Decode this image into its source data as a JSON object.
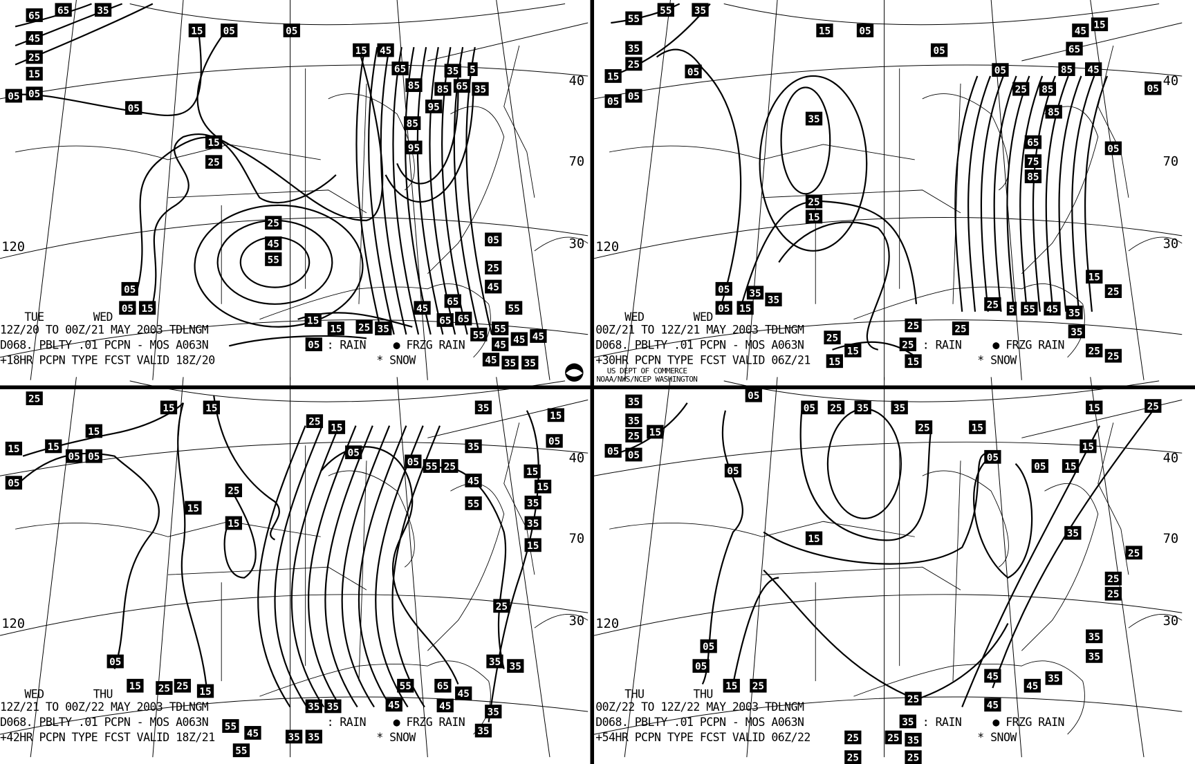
{
  "legend": {
    "frzg_rain": "● FRZG RAIN",
    "snow": "* SNOW",
    "rain_suffix": ": RAIN"
  },
  "graticule": {
    "lat40": "40",
    "lat30": "30",
    "lon70": "70",
    "lon120": "120"
  },
  "agency": {
    "line1": "US DEPT OF COMMERCE",
    "line2": "NOAA/NWS/NCEP WASHINGTON"
  },
  "panels": [
    {
      "day1": "TUE",
      "day2": "WED",
      "period": "12Z/20 TO 00Z/21 MAY 2003  TDLNGM",
      "product": "D068. PBLTY .01 PCPN - MOS A063N",
      "valid": "+18HR PCPN TYPE FCST VALID 18Z/20",
      "legend_rain_value": "05",
      "contour_labels": [
        "65",
        "65",
        "35",
        "45",
        "25",
        "15",
        "05",
        "05",
        "15",
        "05",
        "05",
        "05",
        "15",
        "25",
        "15",
        "45",
        "65",
        "85",
        "35",
        "5",
        "85",
        "65",
        "35",
        "95",
        "85",
        "95",
        "25",
        "45",
        "55",
        "05",
        "05",
        "15",
        "05",
        "25",
        "45",
        "55",
        "45",
        "65",
        "65",
        "65",
        "15",
        "15",
        "25",
        "35",
        "55",
        "55",
        "45",
        "45",
        "45",
        "45",
        "35",
        "35"
      ]
    },
    {
      "day1": "WED",
      "day2": "WED",
      "period": "00Z/21 TO 12Z/21 MAY 2003  TDLNGM",
      "product": "D068. PBLTY .01 PCPN - MOS A063N",
      "valid": "+30HR PCPN TYPE FCST VALID 06Z/21",
      "legend_rain_value": "25",
      "contour_labels": [
        "55",
        "55",
        "35",
        "35",
        "25",
        "15",
        "05",
        "05",
        "15",
        "05",
        "05",
        "05",
        "35",
        "25",
        "15",
        "05",
        "25",
        "85",
        "85",
        "65",
        "75",
        "85",
        "45",
        "15",
        "65",
        "85",
        "45",
        "05",
        "05",
        "05",
        "05",
        "15",
        "35",
        "35",
        "25",
        "5",
        "55",
        "45",
        "35",
        "35",
        "15",
        "25",
        "25",
        "25",
        "15",
        "15",
        "15",
        "25",
        "25",
        "25"
      ]
    },
    {
      "day1": "WED",
      "day2": "THU",
      "period": "12Z/21 TO 00Z/22 MAY 2003  TDLNGM",
      "product": "D068. PBLTY .01 PCPN - MOS A063N",
      "valid": "+42HR PCPN TYPE FCST VALID 18Z/21",
      "legend_rain_value": "",
      "contour_labels": [
        "25",
        "15",
        "15",
        "15",
        "15",
        "15",
        "05",
        "05",
        "05",
        "25",
        "15",
        "15",
        "25",
        "15",
        "05",
        "05",
        "55",
        "25",
        "35",
        "35",
        "15",
        "05",
        "15",
        "15",
        "45",
        "55",
        "35",
        "35",
        "15",
        "25",
        "05",
        "15",
        "25",
        "25",
        "15",
        "35",
        "35",
        "45",
        "55",
        "65",
        "45",
        "45",
        "35",
        "35",
        "35",
        "35",
        "55",
        "45",
        "55",
        "35",
        "35"
      ]
    },
    {
      "day1": "THU",
      "day2": "THU",
      "period": "00Z/22 TO 12Z/22 MAY 2003  TDLNGM",
      "product": "D068. PBLTY .01 PCPN - MOS A063N",
      "valid": "+54HR PCPN TYPE FCST VALID 06Z/22",
      "legend_rain_value": "35",
      "contour_labels": [
        "35",
        "35",
        "25",
        "15",
        "05",
        "05",
        "25",
        "35",
        "35",
        "25",
        "15",
        "15",
        "25",
        "05",
        "05",
        "05",
        "05",
        "05",
        "15",
        "15",
        "15",
        "35",
        "25",
        "25",
        "25",
        "35",
        "35",
        "05",
        "05",
        "15",
        "25",
        "45",
        "45",
        "35",
        "45",
        "25",
        "35",
        "25",
        "25",
        "25",
        "25"
      ]
    }
  ]
}
